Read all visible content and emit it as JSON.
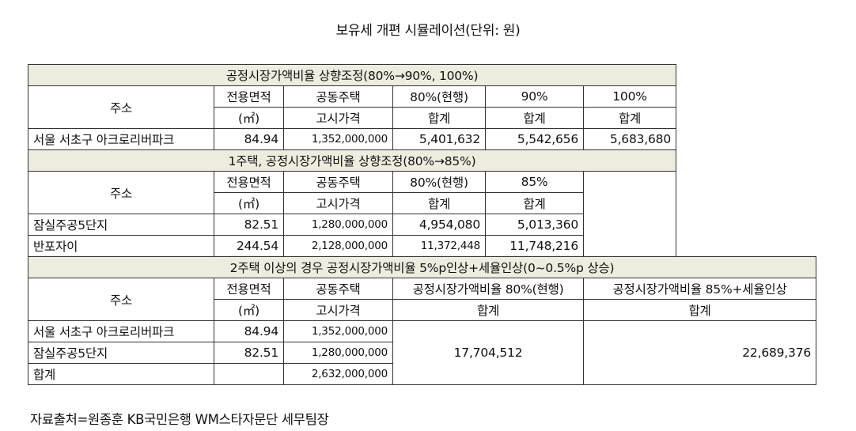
{
  "title": "보유세 개편 시뮬레이션(단위: 원)",
  "s1": {
    "header": "공정시장가액비율 상향조정(80%→90%, 100%)",
    "col_addr": "주소",
    "col_area": "전용면적",
    "col_area_unit": "(㎡)",
    "col_price1": "공동주택",
    "col_price2": "고시가격",
    "col_80": "80%(현행)",
    "col_90": "90%",
    "col_100": "100%",
    "sum": "합계",
    "row": {
      "addr": "서울 서초구 아크로리버파크",
      "area": "84.94",
      "price": "1,352,000,000",
      "v80": "5,401,632",
      "v90": "5,542,656",
      "v100": "5,683,680"
    }
  },
  "s2": {
    "header": "1주택, 공정시장가액비율 상향조정(80%→85%)",
    "col_addr": "주소",
    "col_area": "전용면적",
    "col_area_unit": "(㎡)",
    "col_price1": "공동주택",
    "col_price2": "고시가격",
    "col_80": "80%(현행)",
    "col_85": "85%",
    "sum": "합계",
    "rows": [
      {
        "addr": "잠실주공5단지",
        "area": "82.51",
        "price": "1,280,000,000",
        "v80": "4,954,080",
        "v85": "5,013,360"
      },
      {
        "addr": "반포자이",
        "area": "244.54",
        "price": "2,128,000,000",
        "v80": "11,372,448",
        "v85": "11,748,216"
      }
    ]
  },
  "s3": {
    "header": "2주택 이상의 경우 공정시장가액비율 5%p인상+세율인상(0~0.5%p 상승)",
    "col_addr": "주소",
    "col_area": "전용면적",
    "col_area_unit": "(㎡)",
    "col_price1": "공동주택",
    "col_price2": "고시가격",
    "col_a": "공정시장가액비율 80%(현행)",
    "col_b": "공정시장가액비율 85%+세율인상",
    "sum": "합계",
    "rows": [
      {
        "addr": "서울 서초구 아크로리버파크",
        "area": "84.94",
        "price": "1,352,000,000"
      },
      {
        "addr": "잠실주공5단지",
        "area": "82.51",
        "price": "1,280,000,000"
      },
      {
        "addr": "합계",
        "area": "",
        "price": "2,632,000,000"
      }
    ],
    "total_a": "17,704,512",
    "total_b": "22,689,376"
  },
  "source": "자료출처=원종훈 KB국민은행 WM스타자문단 세무팀장"
}
